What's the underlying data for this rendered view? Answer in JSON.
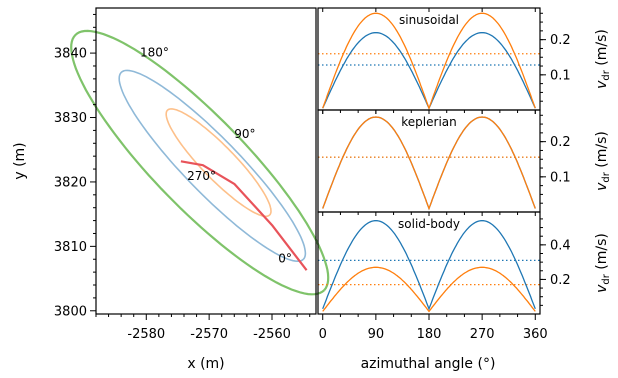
{
  "colors": {
    "blue": "#1f77b4",
    "orange": "#ff7f0e",
    "green": "#7fc36a",
    "light_blue": "#8fb9d8",
    "light_orange": "#fdc08a",
    "red": "#e8535a"
  },
  "chart_data": [
    {
      "type": "line",
      "name": "orbit-plot",
      "xlabel": "x (m)",
      "ylabel": "y (m)",
      "xlim": [
        -2588,
        -2553
      ],
      "ylim": [
        3799.5,
        3847
      ],
      "xticks": [
        -2580,
        -2570,
        -2560
      ],
      "xtick_labels": [
        "-2580",
        "-2570",
        "-2560"
      ],
      "yticks": [
        3800,
        3810,
        3820,
        3830,
        3840
      ],
      "ytick_labels": [
        "3800",
        "3810",
        "3820",
        "3830",
        "3840"
      ],
      "ellipses": [
        {
          "role": "outer",
          "color": "green",
          "center": [
            -2571.5,
            3823
          ],
          "semi_major": 28,
          "semi_minor": 7.2,
          "angle_deg": -45
        },
        {
          "role": "middle",
          "color": "light_blue",
          "center": [
            -2569.5,
            3822.5
          ],
          "semi_major": 20.5,
          "semi_minor": 4.3,
          "angle_deg": -45
        },
        {
          "role": "inner",
          "color": "light_orange",
          "center": [
            -2568.5,
            3823
          ],
          "semi_major": 11.5,
          "semi_minor": 2.6,
          "angle_deg": -45
        }
      ],
      "trajectory": {
        "color": "red",
        "points": [
          [
            -2574.5,
            3823.2
          ],
          [
            -2571,
            3822.6
          ],
          [
            -2566,
            3819.7
          ],
          [
            -2560,
            3813.3
          ],
          [
            -2554.5,
            3806.3
          ]
        ]
      },
      "annotations": [
        {
          "text": "180°",
          "x": -2581,
          "y": 3839.5
        },
        {
          "text": "90°",
          "x": -2566,
          "y": 3826.8
        },
        {
          "text": "270°",
          "x": -2573.5,
          "y": 3820.3
        },
        {
          "text": "0°",
          "x": -2559,
          "y": 3807.5
        }
      ]
    },
    {
      "type": "line",
      "name": "sinusoidal",
      "title": "sinusoidal",
      "xlim": [
        -8,
        368
      ],
      "ylim": [
        0,
        0.29
      ],
      "yticks": [
        0.1,
        0.2
      ],
      "ytick_labels": [
        "0.1",
        "0.2"
      ],
      "ylabel": "v_dr (m/s)",
      "series": [
        {
          "color": "blue",
          "shape": "abs_sin",
          "peak": 0.22,
          "min": 0.005
        },
        {
          "color": "orange",
          "shape": "abs_sin",
          "peak": 0.275,
          "min": 0.005
        }
      ],
      "hlines": [
        {
          "color": "blue",
          "y": 0.128
        },
        {
          "color": "orange",
          "y": 0.16
        }
      ]
    },
    {
      "type": "line",
      "name": "keplerian",
      "title": "keplerian",
      "xlim": [
        -8,
        368
      ],
      "ylim": [
        0,
        0.29
      ],
      "yticks": [
        0.1,
        0.2
      ],
      "ytick_labels": [
        "0.1",
        "0.2"
      ],
      "ylabel": "v_dr (m/s)",
      "series": [
        {
          "color": "blue",
          "shape": "abs_sin",
          "peak": 0.27,
          "min": 0.01
        },
        {
          "color": "orange",
          "shape": "abs_sin",
          "peak": 0.27,
          "min": 0.01
        }
      ],
      "hlines": [
        {
          "color": "blue",
          "y": 0.156
        },
        {
          "color": "orange",
          "y": 0.156
        }
      ]
    },
    {
      "type": "line",
      "name": "solid-body",
      "title": "solid-body",
      "xlim": [
        -8,
        368
      ],
      "ylim": [
        0,
        0.59
      ],
      "yticks": [
        0.2,
        0.4
      ],
      "ytick_labels": [
        "0.2",
        "0.4"
      ],
      "ylabel": "v_dr (m/s)",
      "xlabel": "azimuthal angle (°)",
      "xticks": [
        0,
        90,
        180,
        270,
        360
      ],
      "xtick_labels": [
        "0",
        "90",
        "180",
        "270",
        "360"
      ],
      "series": [
        {
          "color": "blue",
          "shape": "abs_sin",
          "peak": 0.54,
          "min": 0.03
        },
        {
          "color": "orange",
          "shape": "abs_sin",
          "peak": 0.27,
          "min": 0.015
        }
      ],
      "hlines": [
        {
          "color": "blue",
          "y": 0.31
        },
        {
          "color": "orange",
          "y": 0.17
        }
      ]
    }
  ]
}
